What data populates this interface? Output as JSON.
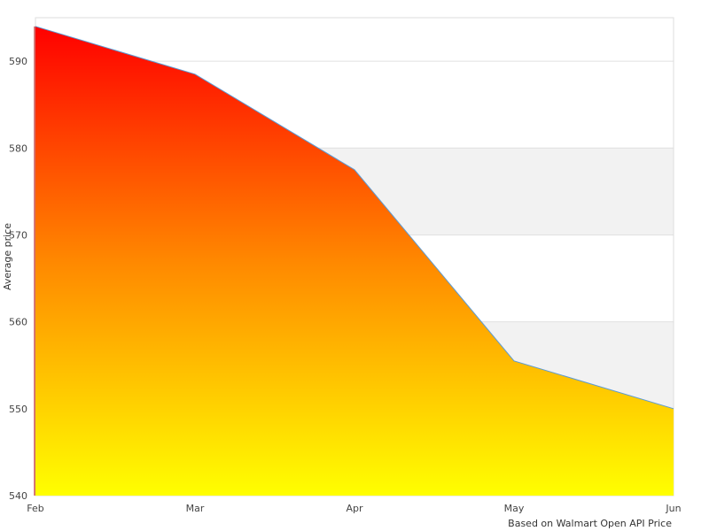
{
  "chart_data": {
    "type": "area",
    "categories": [
      "Feb",
      "Mar",
      "Apr",
      "May",
      "Jun"
    ],
    "values": [
      594.0,
      588.5,
      577.5,
      555.5,
      550.0
    ],
    "title": "",
    "xlabel": "",
    "ylabel": "Average price",
    "ylim": [
      540,
      595
    ],
    "yticks": [
      540,
      550,
      560,
      570,
      580,
      590
    ],
    "grid": true,
    "alternating_bands": true,
    "credit": "Based on Walmart Open API Price",
    "colors": {
      "fill_top": "#ff0000",
      "fill_mid": "#ff8800",
      "fill_bottom": "#ffff00",
      "line": "#5b9bd5",
      "band": "#f2f2f2",
      "grid": "#e0e0e0"
    }
  }
}
